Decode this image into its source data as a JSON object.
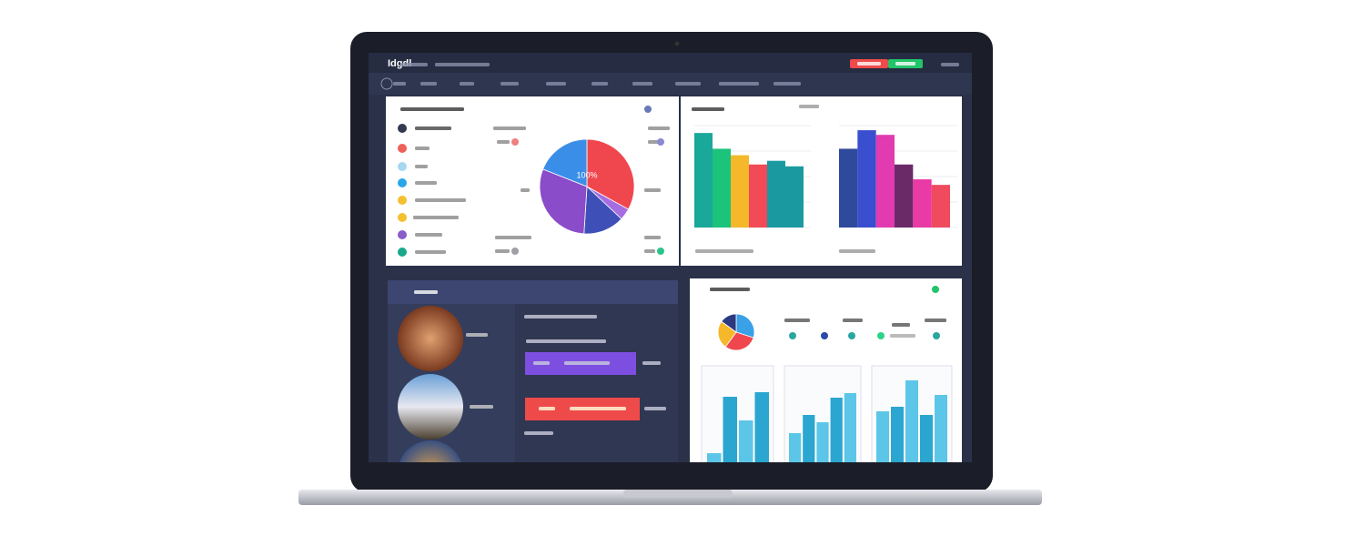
{
  "header": {
    "logo": "Idgdl"
  },
  "pie": {
    "label": "100%",
    "values": [
      33,
      4,
      14,
      30,
      19
    ],
    "colors": [
      "#f0474f",
      "#a56de0",
      "#3e4fb8",
      "#8a4cc9",
      "#3b8ee8"
    ]
  },
  "bars1": {
    "ylim": [
      0,
      110
    ],
    "values": [
      102,
      85,
      78,
      68,
      72,
      66
    ],
    "colors": [
      "#1aa89a",
      "#1cc37a",
      "#f5b82a",
      "#f24a56",
      "#1a9aa0",
      "#1a9aa0"
    ]
  },
  "bars2": {
    "ylim": [
      0,
      110
    ],
    "values": [
      85,
      105,
      100,
      68,
      52,
      46
    ],
    "colors": [
      "#2f4a9c",
      "#3a4fd0",
      "#e23ab0",
      "#6a2a68",
      "#ea3aa6",
      "#ef4a5e"
    ]
  },
  "mini_pie": {
    "values": [
      30,
      30,
      25,
      15
    ],
    "colors": [
      "#3aa0e8",
      "#f0474f",
      "#f5b82a",
      "#2b3a80"
    ]
  },
  "mini_bars": [
    {
      "ylim": [
        0,
        100
      ],
      "values": [
        10,
        72,
        46,
        77
      ],
      "colors": [
        "#5cc6e8",
        "#2aa6d0",
        "#5cc6e8",
        "#2aa6d0"
      ]
    },
    {
      "ylim": [
        0,
        100
      ],
      "values": [
        32,
        52,
        44,
        71,
        76
      ],
      "colors": [
        "#5cc6e8",
        "#2aa6d0",
        "#5cc6e8",
        "#2aa6d0",
        "#5cc6e8"
      ]
    },
    {
      "ylim": [
        0,
        100
      ],
      "values": [
        56,
        61,
        90,
        52,
        74
      ],
      "colors": [
        "#5cc6e8",
        "#2aa6d0",
        "#5cc6e8",
        "#2aa6d0",
        "#5cc6e8"
      ]
    }
  ]
}
